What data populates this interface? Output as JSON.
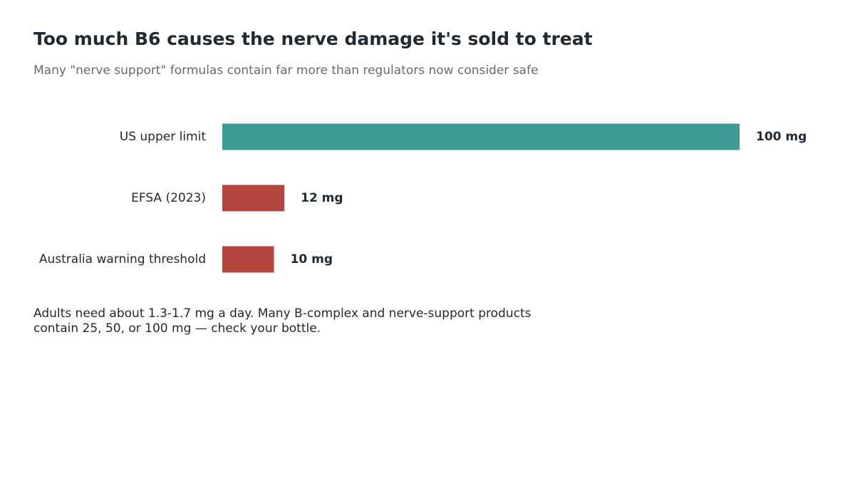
{
  "chart_data": {
    "type": "bar",
    "orientation": "horizontal",
    "title": "Too much B6 causes the nerve damage it's sold to treat",
    "subtitle": "Many \"nerve support\" formulas contain far more than regulators now consider safe",
    "categories": [
      "US upper limit",
      "EFSA (2023)",
      "Australia warning threshold"
    ],
    "values": [
      100,
      12,
      10
    ],
    "value_labels": [
      "100 mg",
      "12 mg",
      "10 mg"
    ],
    "bar_colors": [
      "#3d9b94",
      "#b5453f",
      "#b5453f"
    ],
    "xlim": [
      0,
      100
    ],
    "grid": false,
    "legend": "none"
  },
  "note": "Adults need about 1.3-1.7 mg a day. Many B-complex and nerve-support products contain 25, 50, or 100 mg — check your bottle."
}
